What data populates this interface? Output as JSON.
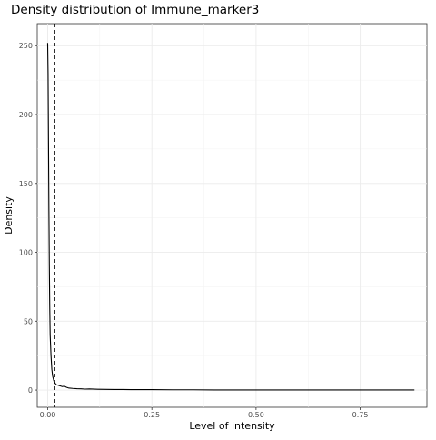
{
  "chart_data": {
    "type": "line",
    "title": "Density distribution of Immune_marker3",
    "xlabel": "Level of intensity",
    "ylabel": "Density",
    "xlim": [
      -0.025,
      0.91
    ],
    "ylim": [
      -12.5,
      266
    ],
    "x_ticks": [
      0.0,
      0.25,
      0.5,
      0.75
    ],
    "x_tick_labels": [
      "0.00",
      "0.25",
      "0.50",
      "0.75"
    ],
    "y_ticks": [
      0,
      50,
      100,
      150,
      200,
      250
    ],
    "y_tick_labels": [
      "0",
      "50",
      "100",
      "150",
      "200",
      "250"
    ],
    "grid": true,
    "theme": "bw",
    "series": [
      {
        "color": "#000000",
        "style": "solid",
        "x": [
          0.0,
          0.001,
          0.002,
          0.003,
          0.004,
          0.005,
          0.006,
          0.008,
          0.01,
          0.012,
          0.015,
          0.018,
          0.02,
          0.025,
          0.03,
          0.035,
          0.04,
          0.045,
          0.05,
          0.06,
          0.07,
          0.08,
          0.09,
          0.1,
          0.12,
          0.14,
          0.16,
          0.18,
          0.2,
          0.25,
          0.3,
          0.35,
          0.4,
          0.5,
          0.6,
          0.7,
          0.8,
          0.88
        ],
        "y": [
          252,
          230,
          180,
          130,
          90,
          60,
          40,
          25,
          15,
          10,
          6.5,
          5,
          4,
          3.5,
          3,
          2.5,
          2.8,
          2,
          1.5,
          1.2,
          1,
          0.9,
          0.7,
          0.8,
          0.6,
          0.5,
          0.4,
          0.4,
          0.3,
          0.3,
          0.2,
          0.2,
          0.1,
          0.1,
          0.1,
          0.05,
          0.05,
          0.05
        ]
      }
    ],
    "vlines": [
      {
        "x": 0.017,
        "style": "dashed",
        "color": "#000000"
      }
    ]
  }
}
